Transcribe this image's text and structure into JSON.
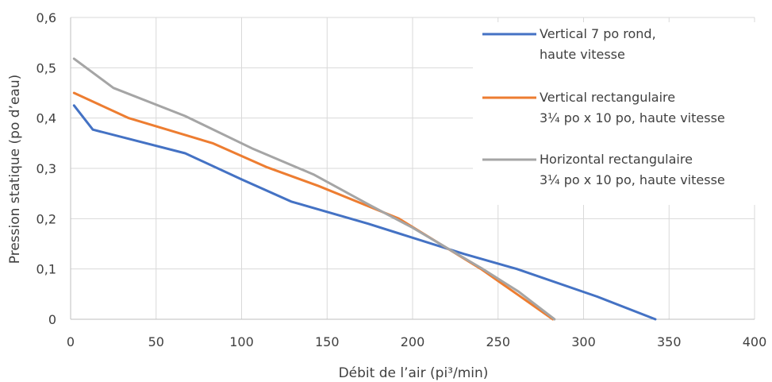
{
  "chart_data": {
    "type": "line",
    "xlabel": "Débit de l’air (pi³/min)",
    "ylabel": "Pression statique  (po d’eau)",
    "xlim": [
      0,
      400
    ],
    "ylim": [
      0,
      0.6
    ],
    "x_ticks": [
      0,
      50,
      100,
      150,
      200,
      250,
      300,
      350,
      400
    ],
    "y_ticks": [
      0,
      0.1,
      0.2,
      0.3,
      0.4,
      0.5,
      0.6
    ],
    "x_tick_labels": [
      "0",
      "50",
      "100",
      "150",
      "200",
      "250",
      "300",
      "350",
      "400"
    ],
    "y_tick_labels": [
      "0",
      "0,1",
      "0,2",
      "0,3",
      "0,4",
      "0,5",
      "0,6"
    ],
    "grid": true,
    "legend_position": "right",
    "series": [
      {
        "name": "Vertical 7 po rond,",
        "name_line2": "haute vitesse",
        "color": "#4472C4",
        "points": [
          [
            2,
            0.425
          ],
          [
            13,
            0.377
          ],
          [
            67,
            0.33
          ],
          [
            100,
            0.278
          ],
          [
            129,
            0.234
          ],
          [
            174,
            0.19
          ],
          [
            230,
            0.13
          ],
          [
            261,
            0.1
          ],
          [
            308,
            0.045
          ],
          [
            342,
            0.0
          ]
        ]
      },
      {
        "name": "Vertical rectangulaire",
        "name_line2": "3¼ po x 10 po, haute vitesse",
        "color": "#ED7D31",
        "points": [
          [
            2,
            0.45
          ],
          [
            34,
            0.4
          ],
          [
            83,
            0.35
          ],
          [
            115,
            0.302
          ],
          [
            145,
            0.265
          ],
          [
            192,
            0.2
          ],
          [
            216,
            0.15
          ],
          [
            240,
            0.1
          ],
          [
            261,
            0.05
          ],
          [
            282,
            0.0
          ]
        ]
      },
      {
        "name": "Horizontal rectangulaire",
        "name_line2": "3¼ po x 10 po, haute vitesse",
        "color": "#A5A5A5",
        "points": [
          [
            2,
            0.518
          ],
          [
            25,
            0.46
          ],
          [
            67,
            0.404
          ],
          [
            106,
            0.34
          ],
          [
            142,
            0.288
          ],
          [
            176,
            0.225
          ],
          [
            200,
            0.182
          ],
          [
            226,
            0.13
          ],
          [
            241,
            0.1
          ],
          [
            262,
            0.055
          ],
          [
            283,
            0.0
          ]
        ]
      }
    ]
  }
}
